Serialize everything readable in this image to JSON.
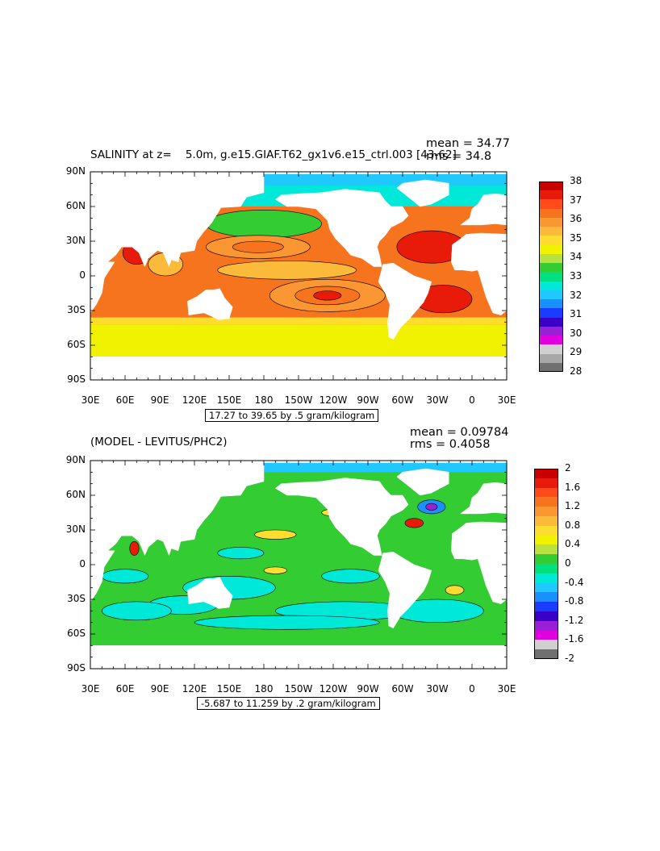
{
  "panels": [
    {
      "title": "SALINITY at z=    5.0m, g.e15.GIAF.T62_gx1v6.e15_ctrl.003 [43-62]",
      "mean_text": "mean = 34.77",
      "rms_text": "rms = 34.8",
      "info_text": "17.27 to 39.65 by .5 gram/kilogram",
      "colorbar": {
        "labels": [
          "38",
          "37",
          "36",
          "35",
          "34",
          "33",
          "32",
          "31",
          "30",
          "29",
          "28"
        ],
        "colors": [
          "#c80000",
          "#e81a0a",
          "#ff4a1a",
          "#f7741e",
          "#fa9732",
          "#fbba3a",
          "#ffdd30",
          "#f0f200",
          "#b8e040",
          "#33cc33",
          "#00e080",
          "#00e8d8",
          "#20c8ff",
          "#1a90ff",
          "#1a3cff",
          "#3a00c8",
          "#9a20d8",
          "#e000e0",
          "#d0d0d0",
          "#a8a8a8",
          "#707070"
        ]
      },
      "field_colors": {
        "ocean_base": "#f7741e",
        "tropics_low": "#fbba3a",
        "south_band": "#ffdd30",
        "southern_ocean": "#f0f200",
        "subtropical_high": "#e81a0a",
        "high_lat": "#00e8d8",
        "arctic": "#20c8ff",
        "land": "#ffffff"
      }
    },
    {
      "title": "(MODEL - LEVITUS/PHC2)",
      "mean_text": "mean = 0.09784",
      "rms_text": "rms = 0.4058",
      "info_text": "-5.687 to 11.259 by .2 gram/kilogram",
      "colorbar": {
        "labels": [
          "2",
          "1.6",
          "1.2",
          "0.8",
          "0.4",
          "0",
          "-0.4",
          "-0.8",
          "-1.2",
          "-1.6",
          "-2"
        ],
        "colors": [
          "#c80000",
          "#e81a0a",
          "#ff4a1a",
          "#f7741e",
          "#fa9732",
          "#fbba3a",
          "#ffdd30",
          "#f0f200",
          "#b8e040",
          "#33cc33",
          "#00e080",
          "#00e8d8",
          "#20c8ff",
          "#1a90ff",
          "#1a3cff",
          "#3a00c8",
          "#9a20d8",
          "#e000e0",
          "#d0d0d0",
          "#707070"
        ]
      },
      "field_colors": {
        "ocean_base": "#33cc33",
        "negative": "#00e8d8",
        "strong_negative": "#20c8ff",
        "positive": "#ffdd30",
        "strong_positive": "#e81a0a",
        "land": "#ffffff"
      }
    }
  ],
  "lat_labels": [
    "90N",
    "60N",
    "30N",
    "0",
    "30S",
    "60S",
    "90S"
  ],
  "lon_labels": [
    "30E",
    "60E",
    "90E",
    "120E",
    "150E",
    "180",
    "150W",
    "120W",
    "90W",
    "60W",
    "30W",
    "0",
    "30E"
  ],
  "chart_data": [
    {
      "type": "heatmap",
      "title": "SALINITY at z=    5.0m, g.e15.GIAF.T62_gx1v6.e15_ctrl.003 [43-62]",
      "xlabel": "",
      "ylabel": "",
      "xlim": [
        "30E",
        "30E"
      ],
      "ylim": [
        "90S",
        "90N"
      ],
      "x_ticks": [
        "30E",
        "60E",
        "90E",
        "120E",
        "150E",
        "180",
        "150W",
        "120W",
        "90W",
        "60W",
        "30W",
        "0",
        "30E"
      ],
      "y_ticks": [
        "90N",
        "60N",
        "30N",
        "0",
        "30S",
        "60S",
        "90S"
      ],
      "color_levels": [
        28,
        29,
        30,
        31,
        32,
        33,
        34,
        35,
        36,
        37,
        38
      ],
      "contour_range": {
        "min": 17.27,
        "max": 39.65,
        "interval": 0.5,
        "units": "gram/kilogram"
      },
      "mean": 34.77,
      "rms": 34.8
    },
    {
      "type": "heatmap",
      "title": "(MODEL - LEVITUS/PHC2)",
      "xlabel": "",
      "ylabel": "",
      "xlim": [
        "30E",
        "30E"
      ],
      "ylim": [
        "90S",
        "90N"
      ],
      "x_ticks": [
        "30E",
        "60E",
        "90E",
        "120E",
        "150E",
        "180",
        "150W",
        "120W",
        "90W",
        "60W",
        "30W",
        "0",
        "30E"
      ],
      "y_ticks": [
        "90N",
        "60N",
        "30N",
        "0",
        "30S",
        "60S",
        "90S"
      ],
      "color_levels": [
        -2,
        -1.6,
        -1.2,
        -0.8,
        -0.4,
        0,
        0.4,
        0.8,
        1.2,
        1.6,
        2
      ],
      "contour_range": {
        "min": -5.687,
        "max": 11.259,
        "interval": 0.2,
        "units": "gram/kilogram"
      },
      "mean": 0.09784,
      "rms": 0.4058
    }
  ]
}
